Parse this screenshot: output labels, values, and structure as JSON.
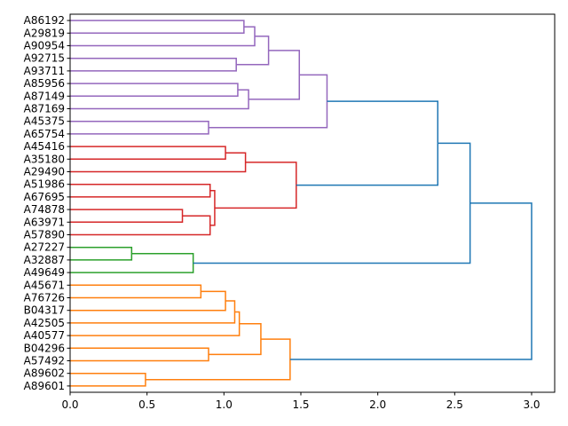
{
  "chart_data": {
    "type": "dendrogram",
    "orientation": "left",
    "title": "",
    "xlabel": "",
    "ylabel": "",
    "xlim": [
      0,
      3.15
    ],
    "xticks": [
      0.0,
      0.5,
      1.0,
      1.5,
      2.0,
      2.5,
      3.0
    ],
    "xtick_labels": [
      "0.0",
      "0.5",
      "1.0",
      "1.5",
      "2.0",
      "2.5",
      "3.0"
    ],
    "leaves": [
      "A86192",
      "A29819",
      "A90954",
      "A92715",
      "A93711",
      "A85956",
      "A87149",
      "A87169",
      "A45375",
      "A65754",
      "A45416",
      "A35180",
      "A29490",
      "A51986",
      "A67695",
      "A74878",
      "A63971",
      "A57890",
      "A27227",
      "A32887",
      "A49649",
      "A45671",
      "A76726",
      "B04317",
      "A42505",
      "A40577",
      "B04296",
      "A57492",
      "A89602",
      "A89601"
    ],
    "colors": {
      "purple": "#9467bd",
      "red": "#d62728",
      "green": "#2ca02c",
      "orange": "#ff7f0e",
      "link_above": "#1f77b4"
    },
    "merges": [
      {
        "id": "m1",
        "left": "A86192",
        "right": "A29819",
        "height": 1.13,
        "color": "purple"
      },
      {
        "id": "m2",
        "left": "m1",
        "right": "A90954",
        "height": 1.2,
        "color": "purple"
      },
      {
        "id": "m3",
        "left": "A92715",
        "right": "A93711",
        "height": 1.08,
        "color": "purple"
      },
      {
        "id": "m4",
        "left": "m2",
        "right": "m3",
        "height": 1.29,
        "color": "purple"
      },
      {
        "id": "m5",
        "left": "A85956",
        "right": "A87149",
        "height": 1.09,
        "color": "purple"
      },
      {
        "id": "m6",
        "left": "m5",
        "right": "A87169",
        "height": 1.16,
        "color": "purple"
      },
      {
        "id": "m7",
        "left": "m4",
        "right": "m6",
        "height": 1.49,
        "color": "purple"
      },
      {
        "id": "m8",
        "left": "A45375",
        "right": "A65754",
        "height": 0.9,
        "color": "purple"
      },
      {
        "id": "m9",
        "left": "m7",
        "right": "m8",
        "height": 1.67,
        "color": "purple"
      },
      {
        "id": "m10",
        "left": "A45416",
        "right": "A35180",
        "height": 1.01,
        "color": "red"
      },
      {
        "id": "m11",
        "left": "m10",
        "right": "A29490",
        "height": 1.14,
        "color": "red"
      },
      {
        "id": "m12",
        "left": "A51986",
        "right": "A67695",
        "height": 0.91,
        "color": "red"
      },
      {
        "id": "m13",
        "left": "A74878",
        "right": "A63971",
        "height": 0.73,
        "color": "red"
      },
      {
        "id": "m14",
        "left": "m13",
        "right": "A57890",
        "height": 0.91,
        "color": "red"
      },
      {
        "id": "m15",
        "left": "m12",
        "right": "m14",
        "height": 0.94,
        "color": "red"
      },
      {
        "id": "m16",
        "left": "m11",
        "right": "m15",
        "height": 1.47,
        "color": "red"
      },
      {
        "id": "m17",
        "left": "m9",
        "right": "m16",
        "height": 2.39,
        "color": "link_above"
      },
      {
        "id": "m18",
        "left": "A27227",
        "right": "A32887",
        "height": 0.4,
        "color": "green"
      },
      {
        "id": "m19",
        "left": "m18",
        "right": "A49649",
        "height": 0.8,
        "color": "green"
      },
      {
        "id": "m20",
        "left": "m17",
        "right": "m19",
        "height": 2.6,
        "color": "link_above"
      },
      {
        "id": "m21",
        "left": "A45671",
        "right": "A76726",
        "height": 0.85,
        "color": "orange"
      },
      {
        "id": "m22",
        "left": "m21",
        "right": "B04317",
        "height": 1.01,
        "color": "orange"
      },
      {
        "id": "m23",
        "left": "m22",
        "right": "A42505",
        "height": 1.07,
        "color": "orange"
      },
      {
        "id": "m24",
        "left": "m23",
        "right": "A40577",
        "height": 1.1,
        "color": "orange"
      },
      {
        "id": "m25",
        "left": "B04296",
        "right": "A57492",
        "height": 0.9,
        "color": "orange"
      },
      {
        "id": "m26",
        "left": "m24",
        "right": "m25",
        "height": 1.24,
        "color": "orange"
      },
      {
        "id": "m27",
        "left": "A89602",
        "right": "A89601",
        "height": 0.49,
        "color": "orange"
      },
      {
        "id": "m28",
        "left": "m26",
        "right": "m27",
        "height": 1.43,
        "color": "orange"
      },
      {
        "id": "m29",
        "left": "m20",
        "right": "m28",
        "height": 3.0,
        "color": "link_above"
      }
    ]
  }
}
